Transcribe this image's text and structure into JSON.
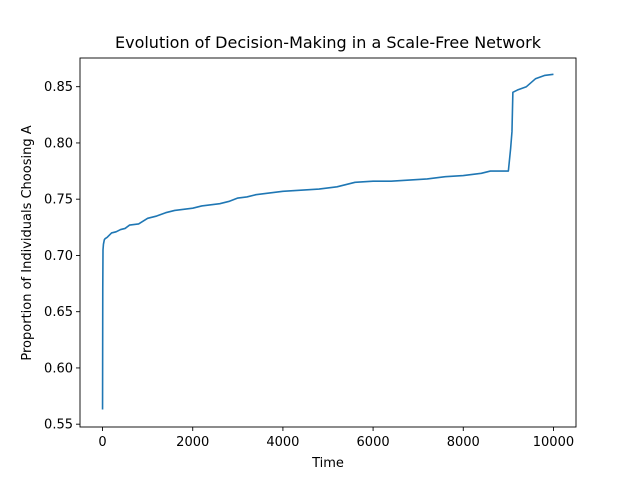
{
  "chart_data": {
    "type": "line",
    "title": "Evolution of Decision-Making in a Scale-Free Network",
    "xlabel": "Time",
    "ylabel": "Proportion of Individuals Choosing A",
    "xlim": [
      -500,
      10500
    ],
    "ylim": [
      0.5475,
      0.8755
    ],
    "xticks": [
      0,
      2000,
      4000,
      6000,
      8000,
      10000
    ],
    "xtick_labels": [
      "0",
      "2000",
      "4000",
      "6000",
      "8000",
      "10000"
    ],
    "yticks": [
      0.55,
      0.6,
      0.65,
      0.7,
      0.75,
      0.8,
      0.85
    ],
    "ytick_labels": [
      "0.55",
      "0.60",
      "0.65",
      "0.70",
      "0.75",
      "0.80",
      "0.85"
    ],
    "grid": false,
    "line_color": "#1f77b4",
    "series": [
      {
        "x": [
          0,
          5,
          10,
          20,
          40,
          60,
          100,
          200,
          300,
          400,
          500,
          600,
          800,
          1000,
          1200,
          1400,
          1600,
          1800,
          2000,
          2200,
          2400,
          2600,
          2800,
          3000,
          3200,
          3400,
          3600,
          3800,
          4000,
          4400,
          4800,
          5200,
          5400,
          5600,
          6000,
          6400,
          6800,
          7200,
          7600,
          8000,
          8400,
          8600,
          8800,
          9000,
          9050,
          9080,
          9100,
          9200,
          9400,
          9600,
          9800,
          10000
        ],
        "y": [
          0.563,
          0.67,
          0.705,
          0.71,
          0.714,
          0.715,
          0.716,
          0.72,
          0.721,
          0.723,
          0.724,
          0.727,
          0.728,
          0.733,
          0.735,
          0.738,
          0.74,
          0.741,
          0.742,
          0.744,
          0.745,
          0.746,
          0.748,
          0.751,
          0.752,
          0.754,
          0.755,
          0.756,
          0.757,
          0.758,
          0.759,
          0.761,
          0.763,
          0.765,
          0.766,
          0.766,
          0.767,
          0.768,
          0.77,
          0.771,
          0.773,
          0.775,
          0.775,
          0.775,
          0.795,
          0.81,
          0.845,
          0.847,
          0.85,
          0.857,
          0.86,
          0.861
        ]
      }
    ]
  }
}
